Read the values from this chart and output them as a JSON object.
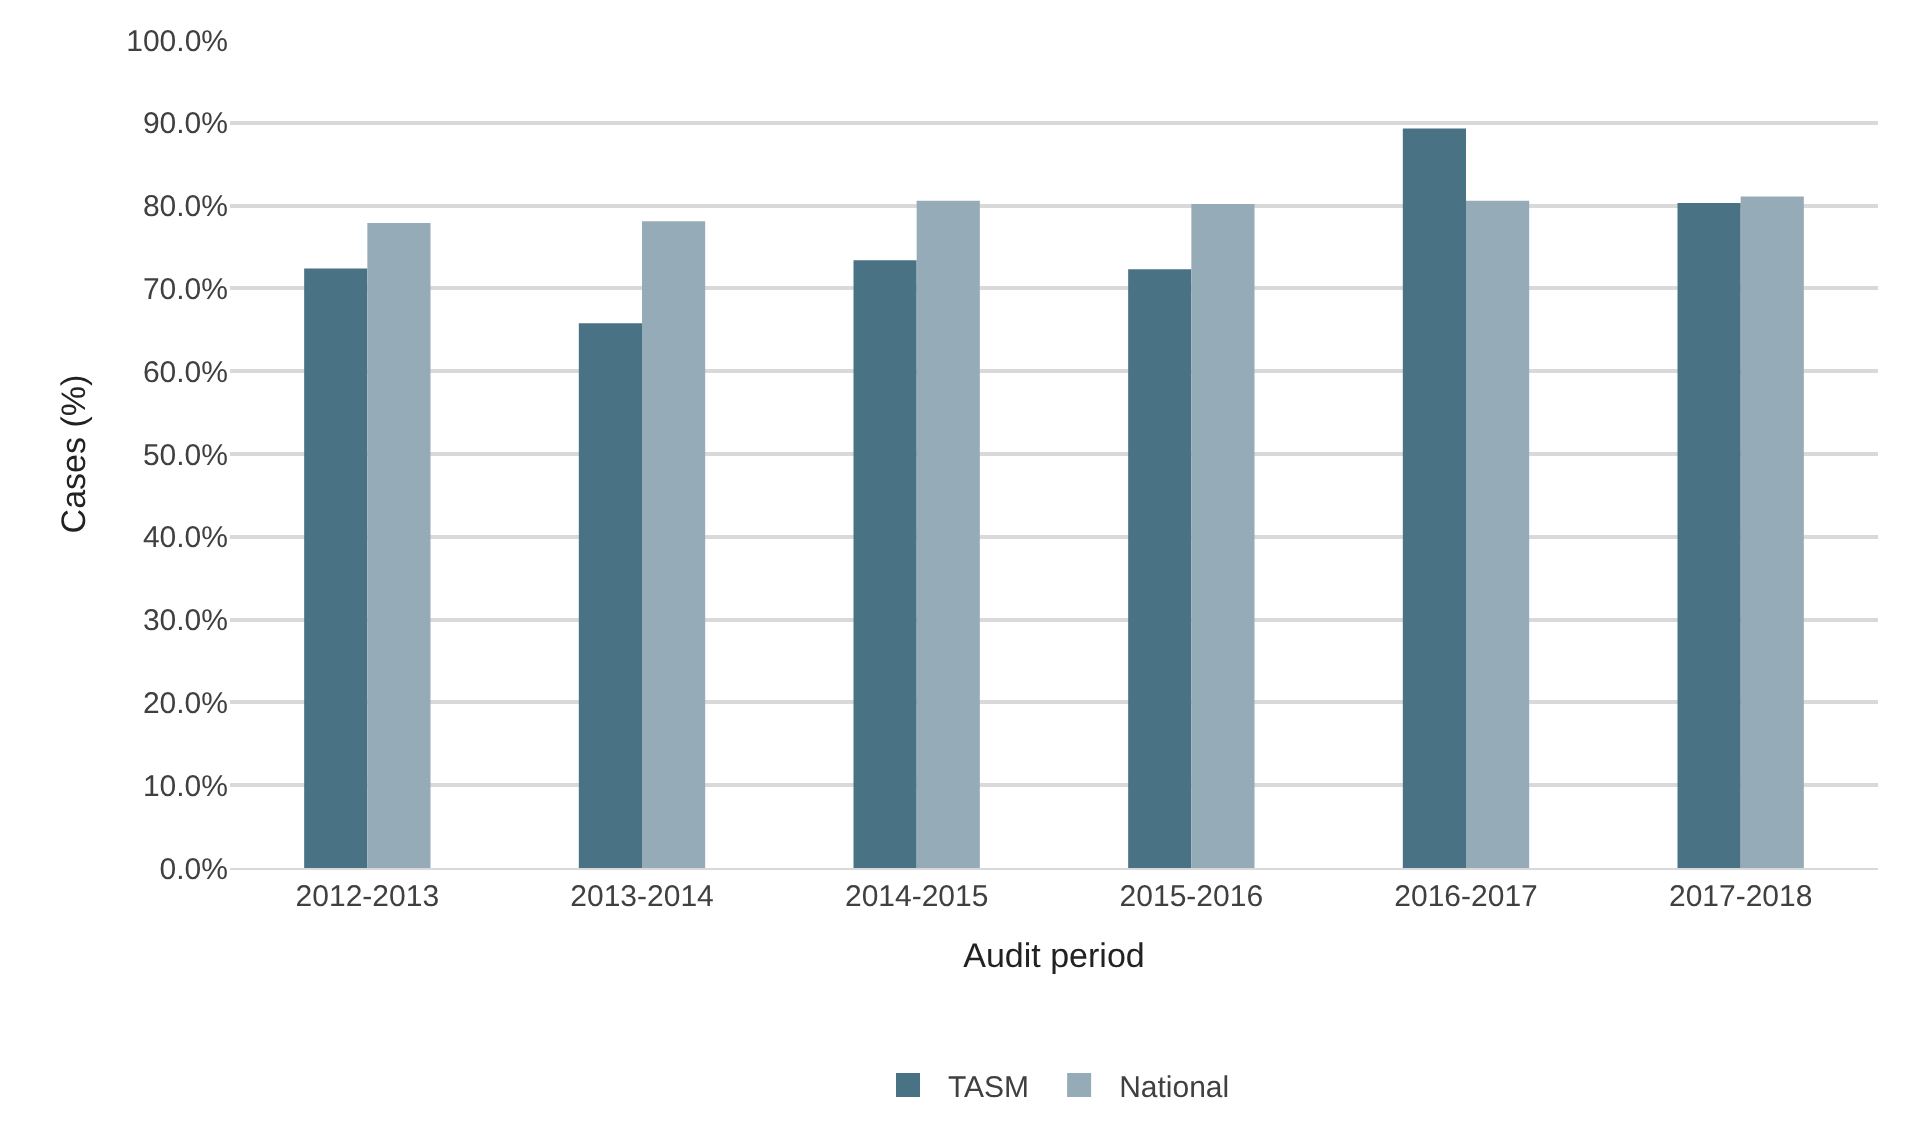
{
  "chart_data": {
    "type": "bar",
    "xlabel": "Audit period",
    "ylabel": "Cases (%)",
    "categories": [
      "2012-2013",
      "2013-2014",
      "2014-2015",
      "2015-2016",
      "2016-2017",
      "2017-2018"
    ],
    "series": [
      {
        "name": "TASM",
        "color": "#4a7285",
        "values": [
          72.4,
          65.8,
          73.4,
          72.3,
          89.3,
          80.3
        ]
      },
      {
        "name": "National",
        "color": "#95acb8",
        "values": [
          77.9,
          78.1,
          80.6,
          80.2,
          80.6,
          81.1
        ]
      }
    ],
    "ylim": [
      0,
      100
    ],
    "yticks": [
      {
        "value": 0,
        "label": "0.0%"
      },
      {
        "value": 10,
        "label": "10.0%"
      },
      {
        "value": 20,
        "label": "20.0%"
      },
      {
        "value": 30,
        "label": "30.0%"
      },
      {
        "value": 40,
        "label": "40.0%"
      },
      {
        "value": 50,
        "label": "50.0%"
      },
      {
        "value": 60,
        "label": "60.0%"
      },
      {
        "value": 70,
        "label": "70.0%"
      },
      {
        "value": 80,
        "label": "80.0%"
      },
      {
        "value": 90,
        "label": "90.0%"
      },
      {
        "value": 100,
        "label": "100.0%"
      }
    ],
    "grid": "y",
    "legend": "bottom"
  }
}
